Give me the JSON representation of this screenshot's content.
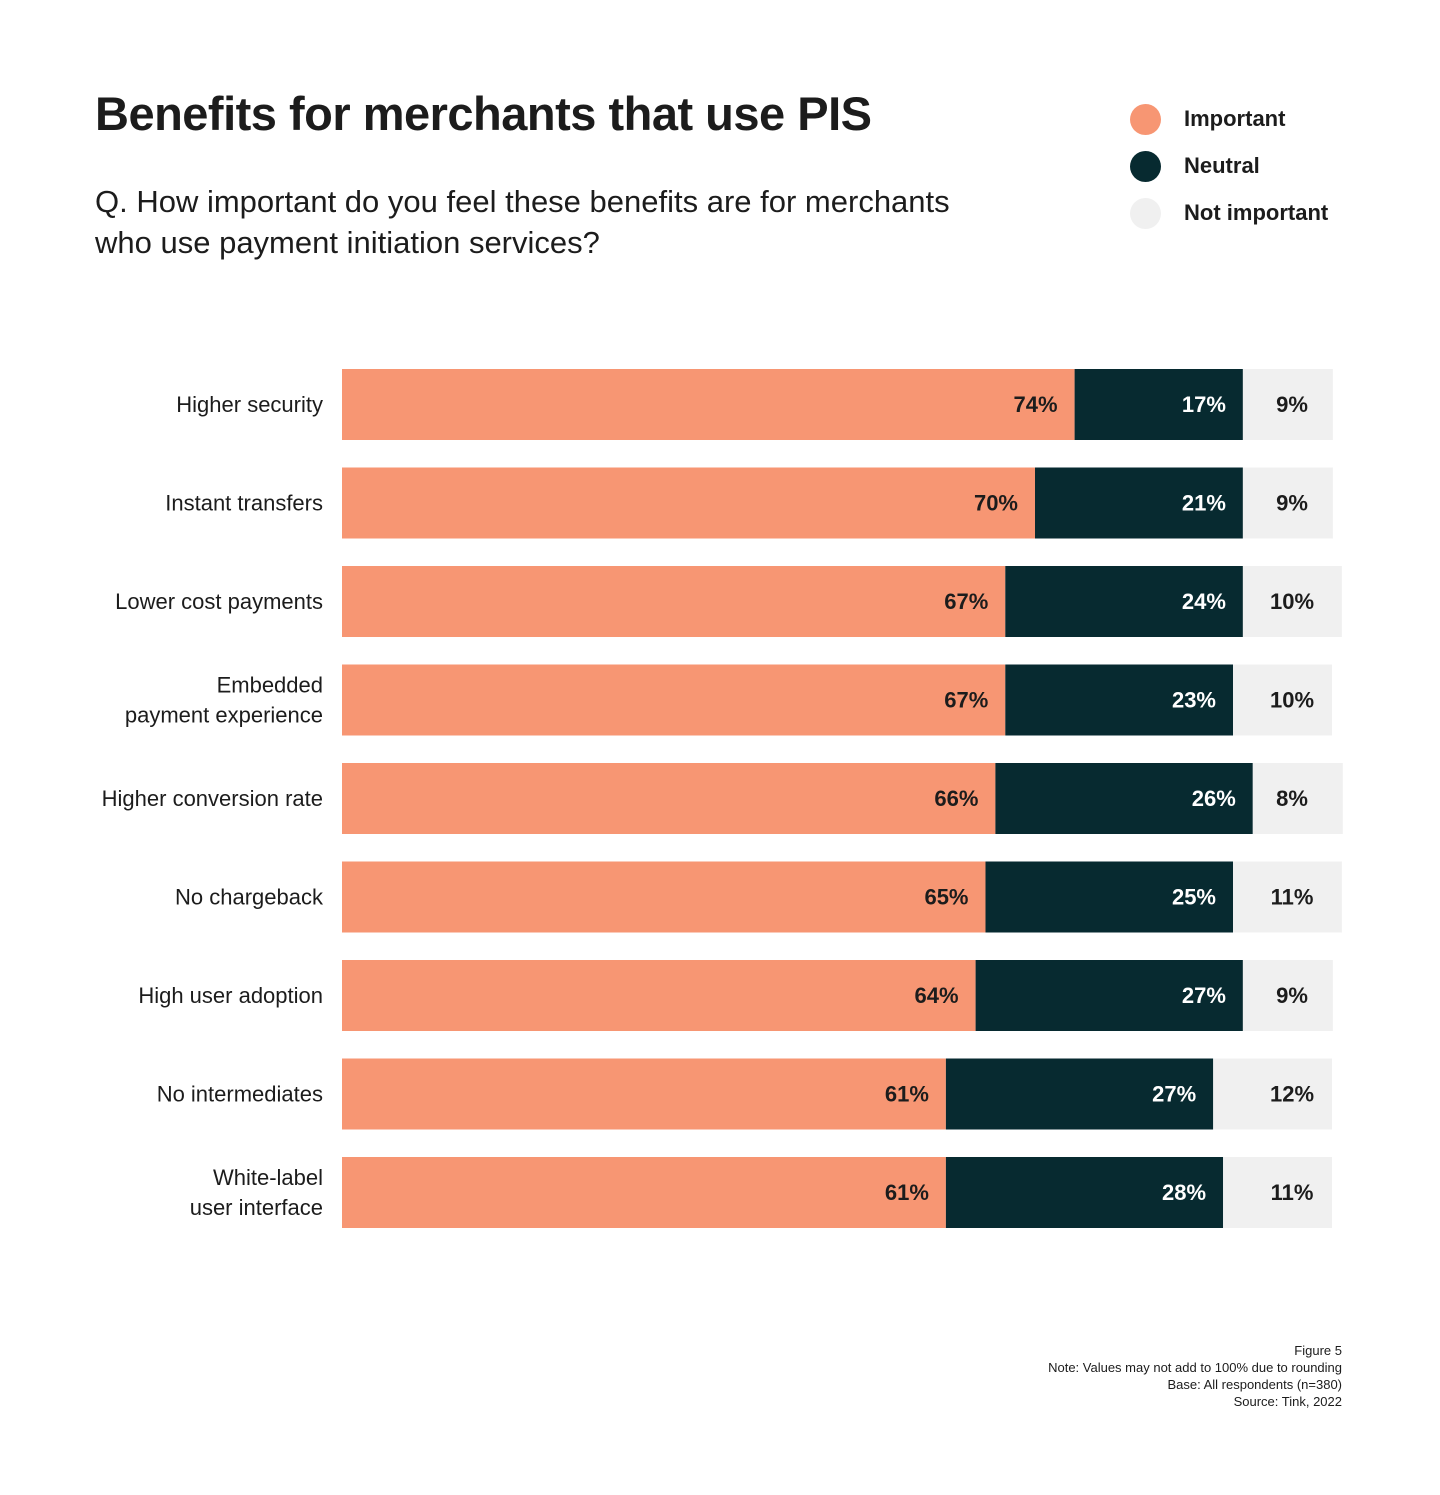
{
  "title": "Benefits for merchants that use PIS",
  "subtitle": "Q. How important do you feel these benefits are for merchants who use payment initiation services?",
  "legend": [
    {
      "label": "Important",
      "color": "#f79673",
      "dot": "important-dot"
    },
    {
      "label": "Neutral",
      "color": "#072a30",
      "dot": "neutral-dot"
    },
    {
      "label": "Not important",
      "color": "#f0f0f0",
      "dot": "not-important-dot"
    }
  ],
  "chart_data": {
    "type": "bar",
    "orientation": "horizontal",
    "stacked": true,
    "categories": [
      [
        "Higher security"
      ],
      [
        "Instant transfers"
      ],
      [
        "Lower cost payments"
      ],
      [
        "Embedded",
        "payment experience"
      ],
      [
        "Higher conversion rate"
      ],
      [
        "No chargeback"
      ],
      [
        "High user adoption"
      ],
      [
        "No intermediates"
      ],
      [
        "White-label",
        "user interface"
      ]
    ],
    "series": [
      {
        "name": "Important",
        "color": "#f79673",
        "label_color": "#1c1c1c",
        "values": [
          74,
          70,
          67,
          67,
          66,
          65,
          64,
          61,
          61
        ]
      },
      {
        "name": "Neutral",
        "color": "#072a30",
        "label_color": "#ffffff",
        "values": [
          17,
          21,
          24,
          23,
          26,
          25,
          27,
          27,
          28
        ]
      },
      {
        "name": "Not important",
        "color": "#f0f0f0",
        "label_color": "#1c1c1c",
        "values": [
          9,
          9,
          10,
          10,
          8,
          11,
          9,
          12,
          11
        ]
      }
    ],
    "value_suffix": "%",
    "xlim": [
      0,
      100
    ],
    "grid": false,
    "legend_position": "top-right"
  },
  "footer": [
    "Figure 5",
    "Note: Values may not add to 100% due to rounding",
    "Base: All respondents (n=380)",
    "Source: Tink, 2022"
  ]
}
